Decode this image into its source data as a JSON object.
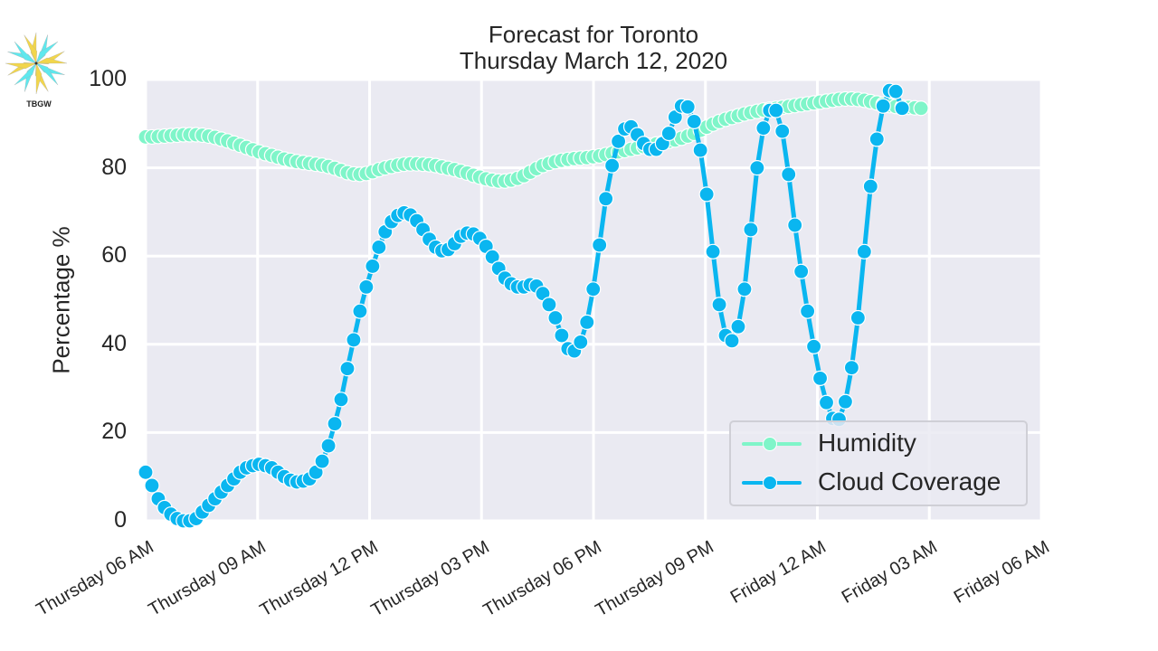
{
  "logo": {
    "text": "TBGW",
    "icon": "star-compass-icon"
  },
  "chart_data": {
    "type": "line",
    "title": "Forecast for Toronto",
    "subtitle": "Thursday March 12, 2020",
    "xlabel": "",
    "ylabel": "Percentage %",
    "ylim": [
      0,
      100
    ],
    "yticks": [
      "0",
      "20",
      "40",
      "60",
      "80",
      "100"
    ],
    "xticks": [
      "Thursday 06 AM",
      "Thursday 09 AM",
      "Thursday 12 PM",
      "Thursday 03 PM",
      "Thursday 06 PM",
      "Thursday 09 PM",
      "Friday 12 AM",
      "Friday 03 AM",
      "Friday 06 AM"
    ],
    "x_start": "Thursday 06 AM",
    "x_interval_minutes": 10,
    "grid": true,
    "legend_position": "lower right",
    "series": [
      {
        "name": "Humidity",
        "color": "#7ff5c9",
        "values": [
          87,
          87,
          87.1,
          87.2,
          87.3,
          87.4,
          87.5,
          87.5,
          87.5,
          87.4,
          87.2,
          86.9,
          86.5,
          86.1,
          85.6,
          85.1,
          84.6,
          84.1,
          83.6,
          83.2,
          82.8,
          82.4,
          82.0,
          81.7,
          81.4,
          81.2,
          81.0,
          80.8,
          80.6,
          80.3,
          79.9,
          79.4,
          78.9,
          78.6,
          78.5,
          78.7,
          79.1,
          79.6,
          80.0,
          80.3,
          80.6,
          80.8,
          80.9,
          80.9,
          80.8,
          80.7,
          80.5,
          80.2,
          79.9,
          79.6,
          79.2,
          78.8,
          78.3,
          77.9,
          77.5,
          77.2,
          77.0,
          77.0,
          77.2,
          77.6,
          78.2,
          79.0,
          79.8,
          80.5,
          81.0,
          81.4,
          81.7,
          81.9,
          82.1,
          82.2,
          82.3,
          82.5,
          82.7,
          83.0,
          83.3,
          83.6,
          83.9,
          84.2,
          84.5,
          84.8,
          85.1,
          85.4,
          85.7,
          86.0,
          86.3,
          86.7,
          87.2,
          87.8,
          88.5,
          89.2,
          89.9,
          90.5,
          91.0,
          91.4,
          91.8,
          92.2,
          92.5,
          92.8,
          93.1,
          93.3,
          93.5,
          93.7,
          93.9,
          94.1,
          94.3,
          94.5,
          94.7,
          94.9,
          95.1,
          95.3,
          95.5,
          95.6,
          95.6,
          95.5,
          95.3,
          95.0,
          94.7,
          94.4,
          94.1,
          93.9,
          93.8,
          93.7,
          93.6,
          93.5
        ]
      },
      {
        "name": "Cloud Coverage",
        "color": "#0ab6f0",
        "values": [
          11,
          8,
          5,
          3,
          1.5,
          0.5,
          0,
          0,
          0.5,
          2,
          3.5,
          5,
          6.5,
          8,
          9.5,
          11,
          12,
          12.5,
          12.8,
          12.5,
          12,
          11,
          10,
          9.2,
          8.8,
          9,
          9.5,
          11,
          13.5,
          17,
          22,
          27.5,
          34.5,
          41,
          47.5,
          53,
          57.7,
          62,
          65.5,
          67.8,
          69.2,
          69.8,
          69.3,
          68,
          66,
          63.8,
          62,
          61.2,
          61.5,
          62.8,
          64.5,
          65.2,
          65,
          64,
          62.2,
          59.8,
          57.2,
          55,
          53.7,
          53,
          53,
          53.5,
          53.2,
          51.5,
          49,
          46,
          42,
          39,
          38.5,
          40.5,
          45,
          52.5,
          62.5,
          73,
          80.5,
          86,
          88.8,
          89.3,
          87.5,
          85.5,
          84.2,
          84.2,
          85.5,
          87.8,
          91.5,
          94,
          93.8,
          90.5,
          84,
          74,
          61,
          49,
          42,
          40.8,
          44,
          52.5,
          66,
          80,
          89,
          93,
          93,
          88.3,
          78.5,
          67,
          56.5,
          47.5,
          39.5,
          32.3,
          26.8,
          23.2,
          23,
          27,
          34.7,
          46,
          61,
          75.8,
          86.5,
          94,
          97.5,
          97.3,
          93.5
        ]
      }
    ]
  },
  "legend": {
    "items": [
      {
        "label": "Humidity",
        "color": "#7ff5c9"
      },
      {
        "label": "Cloud Coverage",
        "color": "#0ab6f0"
      }
    ]
  }
}
